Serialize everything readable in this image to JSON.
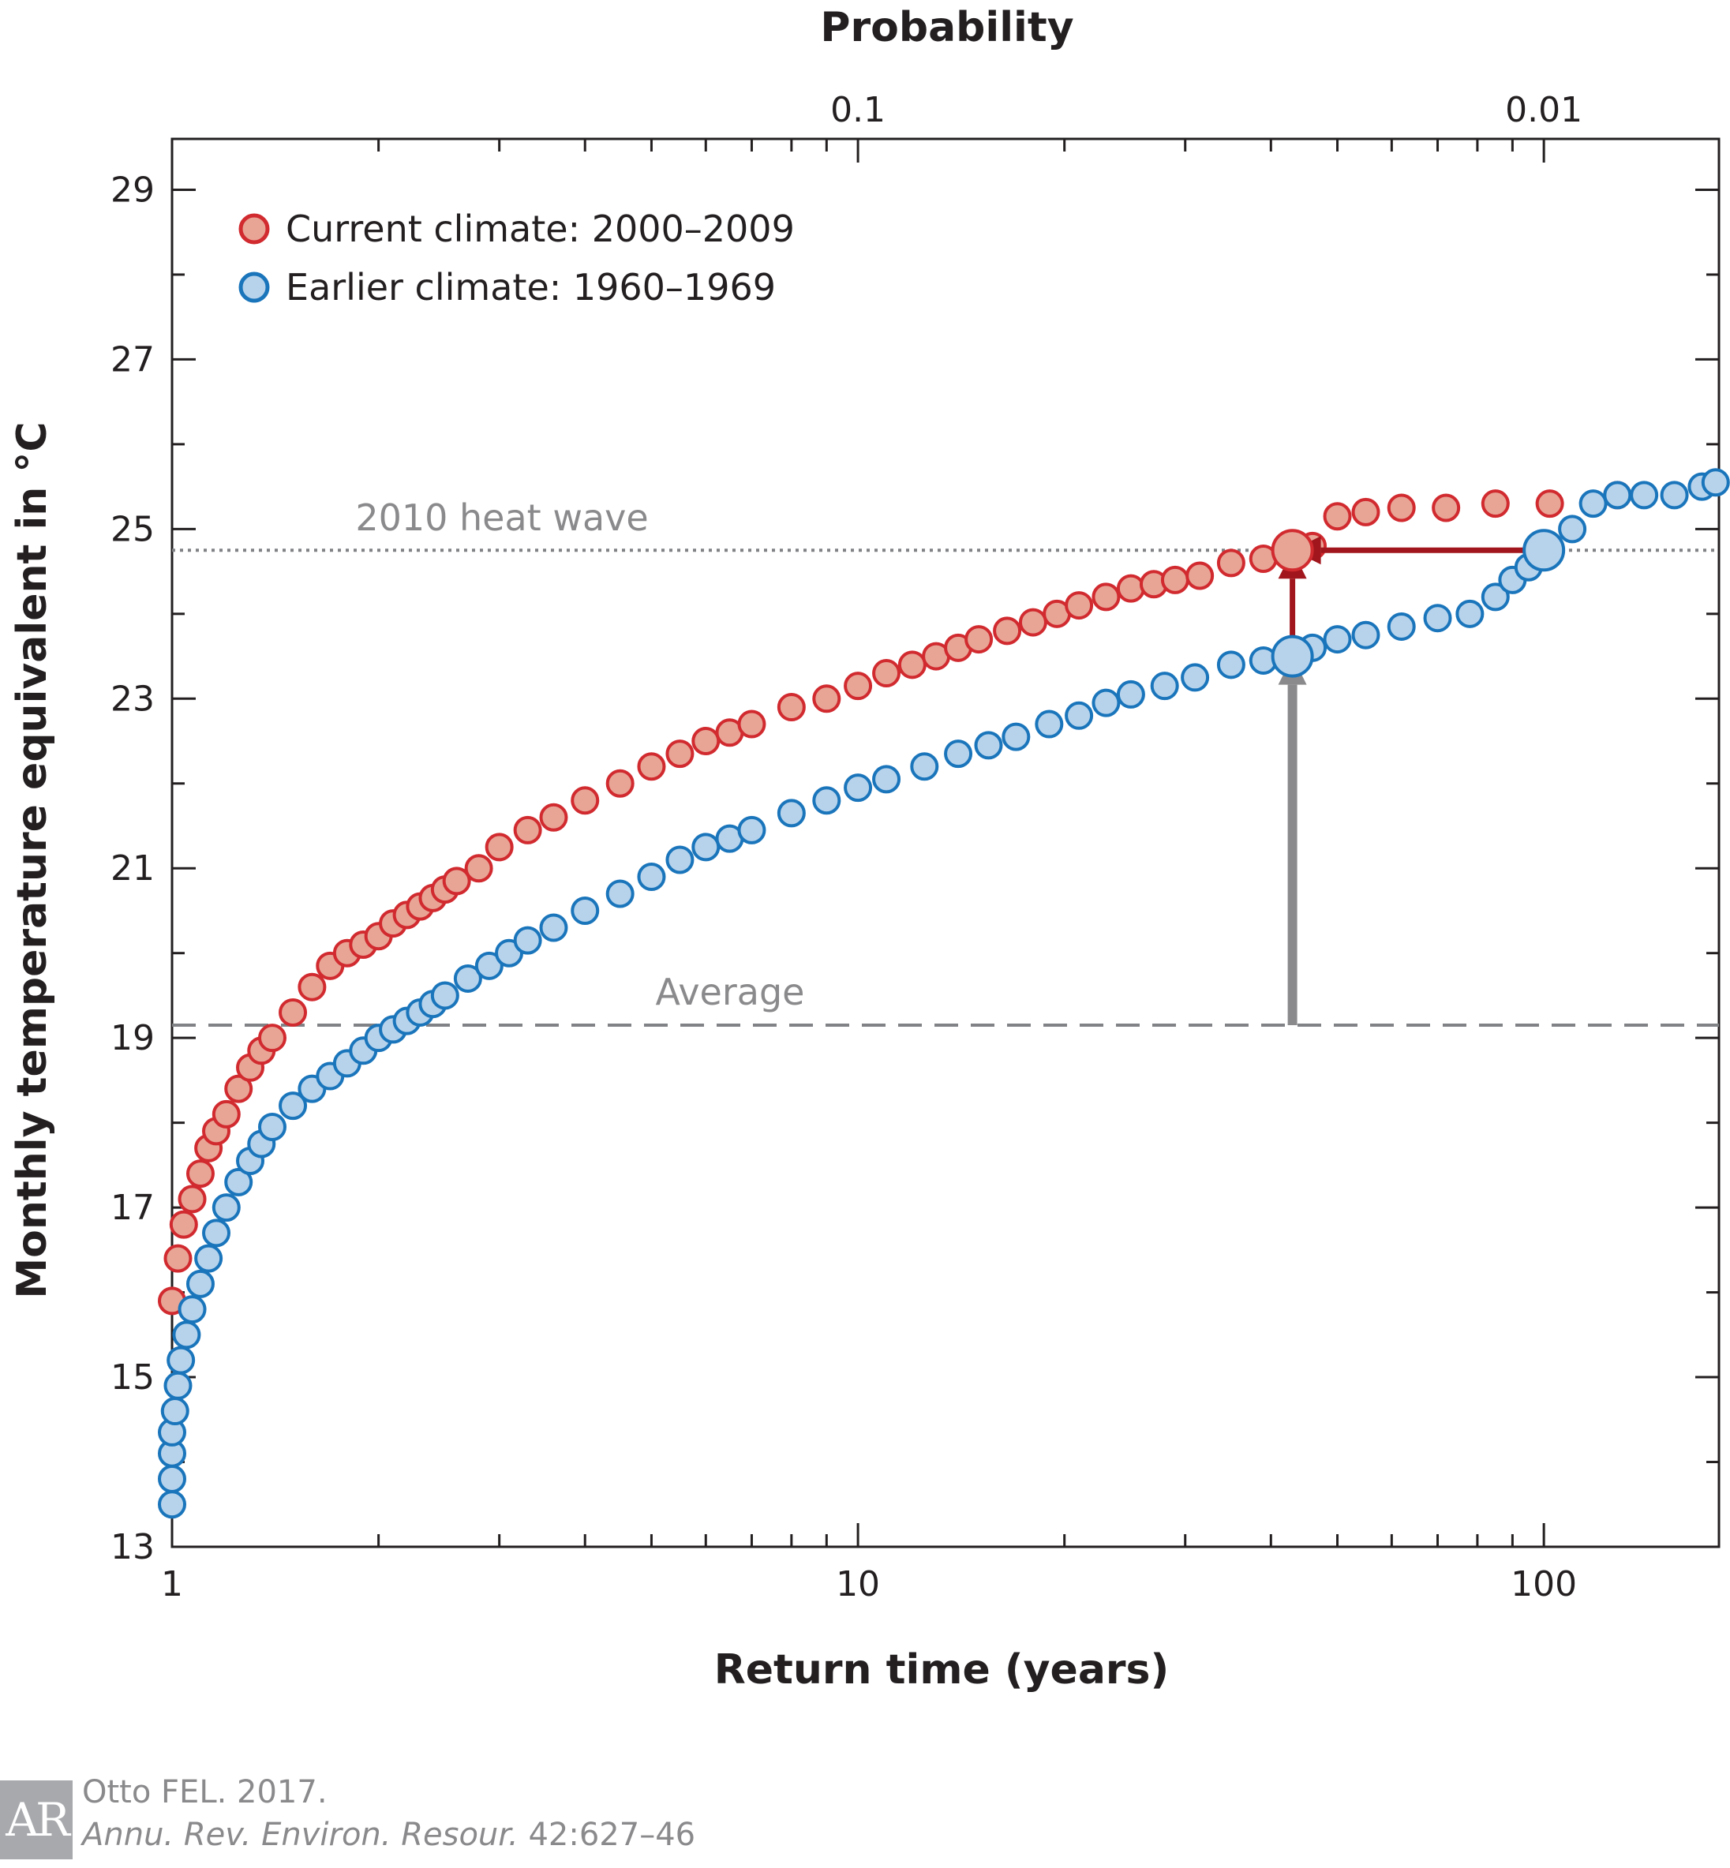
{
  "chart_data": {
    "type": "scatter",
    "title": "",
    "xlabel": "Return time (years)",
    "ylabel": "Monthly temperature equivalent in °C",
    "x2label": "Probability",
    "x_scale": "log",
    "xlim": [
      1,
      180
    ],
    "ylim": [
      13,
      29.6
    ],
    "x_ticks": [
      "1",
      "10",
      "100"
    ],
    "x2_ticks": [
      "0.1",
      "0.01"
    ],
    "y_ticks": [
      "13",
      "15",
      "17",
      "19",
      "21",
      "23",
      "25",
      "27",
      "29"
    ],
    "grid": false,
    "legend_position": "top-left",
    "series": [
      {
        "name": "Current climate: 2000–2009",
        "marker_fill": "#e8a596",
        "marker_edge": "#d12a2f",
        "highlight_point": {
          "x": 43,
          "y": 24.75
        },
        "points": [
          [
            1.0,
            15.9
          ],
          [
            1.02,
            16.4
          ],
          [
            1.04,
            16.8
          ],
          [
            1.07,
            17.1
          ],
          [
            1.1,
            17.4
          ],
          [
            1.13,
            17.7
          ],
          [
            1.16,
            17.9
          ],
          [
            1.2,
            18.1
          ],
          [
            1.25,
            18.4
          ],
          [
            1.3,
            18.65
          ],
          [
            1.35,
            18.85
          ],
          [
            1.4,
            19.0
          ],
          [
            1.5,
            19.3
          ],
          [
            1.6,
            19.6
          ],
          [
            1.7,
            19.85
          ],
          [
            1.8,
            20.0
          ],
          [
            1.9,
            20.1
          ],
          [
            2.0,
            20.2
          ],
          [
            2.1,
            20.35
          ],
          [
            2.2,
            20.45
          ],
          [
            2.3,
            20.55
          ],
          [
            2.4,
            20.65
          ],
          [
            2.5,
            20.75
          ],
          [
            2.6,
            20.85
          ],
          [
            2.8,
            21.0
          ],
          [
            3.0,
            21.25
          ],
          [
            3.3,
            21.45
          ],
          [
            3.6,
            21.6
          ],
          [
            4.0,
            21.8
          ],
          [
            4.5,
            22.0
          ],
          [
            5.0,
            22.2
          ],
          [
            5.5,
            22.35
          ],
          [
            6.0,
            22.5
          ],
          [
            6.5,
            22.6
          ],
          [
            7.0,
            22.7
          ],
          [
            8.0,
            22.9
          ],
          [
            9.0,
            23.0
          ],
          [
            10.0,
            23.15
          ],
          [
            11.0,
            23.3
          ],
          [
            12.0,
            23.4
          ],
          [
            13.0,
            23.5
          ],
          [
            14.0,
            23.6
          ],
          [
            15.0,
            23.7
          ],
          [
            16.5,
            23.8
          ],
          [
            18.0,
            23.9
          ],
          [
            19.5,
            24.0
          ],
          [
            21.0,
            24.1
          ],
          [
            23.0,
            24.2
          ],
          [
            25.0,
            24.3
          ],
          [
            27.0,
            24.35
          ],
          [
            29.0,
            24.4
          ],
          [
            31.5,
            24.45
          ],
          [
            35.0,
            24.6
          ],
          [
            39.0,
            24.65
          ],
          [
            46.0,
            24.8
          ],
          [
            50.0,
            25.15
          ],
          [
            55.0,
            25.2
          ],
          [
            62.0,
            25.25
          ],
          [
            72.0,
            25.25
          ],
          [
            85.0,
            25.3
          ],
          [
            102.0,
            25.3
          ],
          [
            128.0,
            25.4
          ]
        ]
      },
      {
        "name": "Earlier climate: 1960–1969",
        "marker_fill": "#b7d3ec",
        "marker_edge": "#1a75bb",
        "highlight_point": {
          "x": 43,
          "y": 23.5
        },
        "points": [
          [
            1.0,
            13.5
          ],
          [
            1.0,
            13.8
          ],
          [
            1.0,
            14.1
          ],
          [
            1.0,
            14.35
          ],
          [
            1.01,
            14.6
          ],
          [
            1.02,
            14.9
          ],
          [
            1.03,
            15.2
          ],
          [
            1.05,
            15.5
          ],
          [
            1.07,
            15.8
          ],
          [
            1.1,
            16.1
          ],
          [
            1.13,
            16.4
          ],
          [
            1.16,
            16.7
          ],
          [
            1.2,
            17.0
          ],
          [
            1.25,
            17.3
          ],
          [
            1.3,
            17.55
          ],
          [
            1.35,
            17.75
          ],
          [
            1.4,
            17.95
          ],
          [
            1.5,
            18.2
          ],
          [
            1.6,
            18.4
          ],
          [
            1.7,
            18.55
          ],
          [
            1.8,
            18.7
          ],
          [
            1.9,
            18.85
          ],
          [
            2.0,
            19.0
          ],
          [
            2.1,
            19.1
          ],
          [
            2.2,
            19.2
          ],
          [
            2.3,
            19.3
          ],
          [
            2.4,
            19.4
          ],
          [
            2.5,
            19.5
          ],
          [
            2.7,
            19.7
          ],
          [
            2.9,
            19.85
          ],
          [
            3.1,
            20.0
          ],
          [
            3.3,
            20.15
          ],
          [
            3.6,
            20.3
          ],
          [
            4.0,
            20.5
          ],
          [
            4.5,
            20.7
          ],
          [
            5.0,
            20.9
          ],
          [
            5.5,
            21.1
          ],
          [
            6.0,
            21.25
          ],
          [
            6.5,
            21.35
          ],
          [
            7.0,
            21.45
          ],
          [
            8.0,
            21.65
          ],
          [
            9.0,
            21.8
          ],
          [
            10.0,
            21.95
          ],
          [
            11.0,
            22.05
          ],
          [
            12.5,
            22.2
          ],
          [
            14.0,
            22.35
          ],
          [
            15.5,
            22.45
          ],
          [
            17.0,
            22.55
          ],
          [
            19.0,
            22.7
          ],
          [
            21.0,
            22.8
          ],
          [
            23.0,
            22.95
          ],
          [
            25.0,
            23.05
          ],
          [
            28.0,
            23.15
          ],
          [
            31.0,
            23.25
          ],
          [
            35.0,
            23.4
          ],
          [
            39.0,
            23.45
          ],
          [
            46.0,
            23.6
          ],
          [
            50.0,
            23.7
          ],
          [
            55.0,
            23.75
          ],
          [
            62.0,
            23.85
          ],
          [
            70.0,
            23.95
          ],
          [
            78.0,
            24.0
          ],
          [
            85.0,
            24.2
          ],
          [
            90.0,
            24.4
          ],
          [
            95.0,
            24.55
          ],
          [
            110.0,
            25.0
          ],
          [
            118.0,
            25.3
          ],
          [
            128.0,
            25.4
          ],
          [
            140.0,
            25.4
          ],
          [
            155.0,
            25.4
          ],
          [
            170.0,
            25.5
          ],
          [
            178.0,
            25.55
          ]
        ]
      }
    ],
    "reference_lines": [
      {
        "label": "2010 heat wave",
        "y": 24.75,
        "style": "dotted",
        "color": "#808285"
      },
      {
        "label": "Average",
        "y": 19.15,
        "style": "dashed",
        "color": "#808285"
      }
    ],
    "arrows": [
      {
        "from": [
          43,
          19.15
        ],
        "to": [
          43,
          23.5
        ],
        "color": "#8a8a8c"
      },
      {
        "from": [
          43,
          23.5
        ],
        "to": [
          43,
          24.75
        ],
        "color": "#a1161c"
      },
      {
        "from": [
          100,
          24.75
        ],
        "to": [
          43,
          24.75
        ],
        "color": "#a1161c"
      }
    ]
  },
  "credit": {
    "logo_text": "AR",
    "line1": "Otto FEL. 2017.",
    "journal": "Annu. Rev. Environ. Resour.",
    "pages": " 42:627–46"
  }
}
